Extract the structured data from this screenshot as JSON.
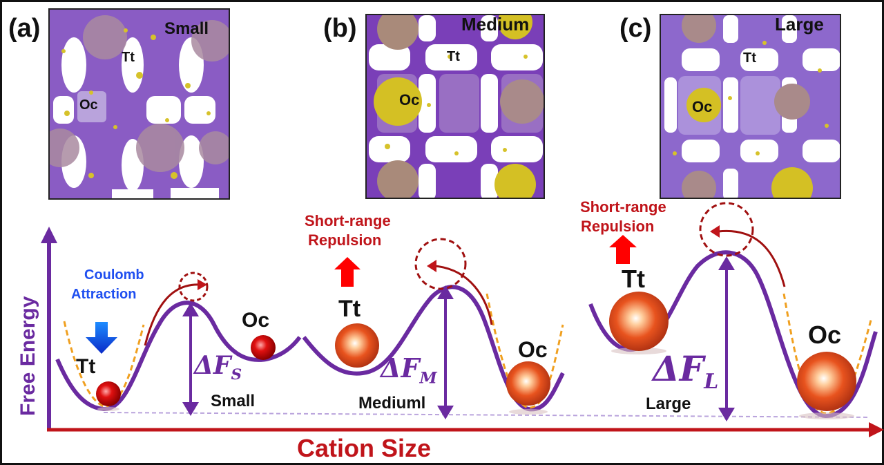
{
  "panels": [
    {
      "letter": "(a)",
      "size": "Small",
      "tt": "Tt",
      "oc": "Oc"
    },
    {
      "letter": "(b)",
      "size": "Medium",
      "tt": "Tt",
      "oc": "Oc"
    },
    {
      "letter": "(c)",
      "size": "Large",
      "tt": "Tt",
      "oc": "Oc"
    }
  ],
  "energy": {
    "coulomb": [
      "Coulomb",
      "Attraction"
    ],
    "short_range_1": [
      "Short-range",
      "Repulsion"
    ],
    "short_range_2": [
      "Short-range",
      "Repulsion"
    ],
    "tt": "Tt",
    "oc": "Oc",
    "delta_symbol": "ΔF",
    "delta_subs": [
      "S",
      "M",
      "L"
    ],
    "well_labels": [
      "Small",
      "Mediuml",
      "Large"
    ]
  },
  "axes": {
    "xlabel": "Cation Size",
    "ylabel": "Free Energy"
  },
  "colors": {
    "purple": "#6a2aa0",
    "red": "#c0141a",
    "orange_dash": "#f0a020",
    "blue": "#1f4ff0"
  }
}
